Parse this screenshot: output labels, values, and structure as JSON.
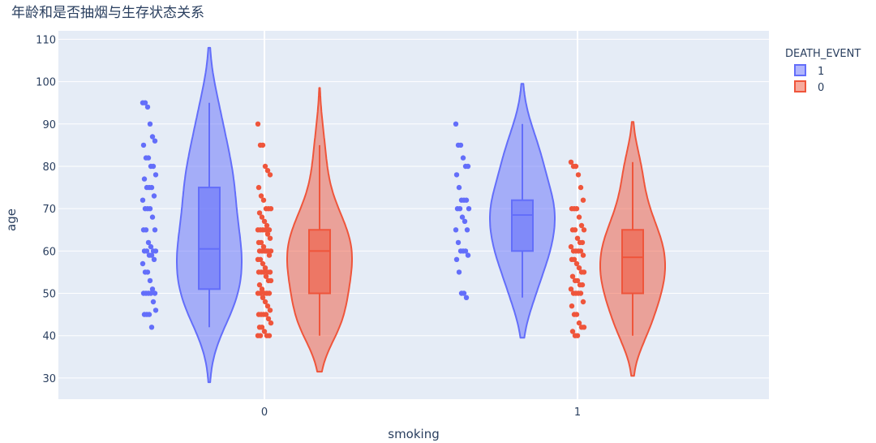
{
  "chart_data": {
    "type": "violin",
    "title": "年龄和是否抽烟与生存状态关系",
    "xlabel": "smoking",
    "ylabel": "age",
    "categories": [
      "0",
      "1"
    ],
    "ylim": [
      25,
      112
    ],
    "yticks": [
      30,
      40,
      50,
      60,
      70,
      80,
      90,
      100,
      110
    ],
    "grid": true,
    "legend": {
      "title": "DEATH_EVENT",
      "placement": "top-right",
      "items": [
        "1",
        "0"
      ]
    },
    "colors": {
      "1": "#636efa",
      "0": "#ef553b",
      "plot_bg": "#e5ecf6",
      "text": "#2a3f5f"
    },
    "series": [
      {
        "name": "1",
        "groups": [
          {
            "category": "0",
            "kde_min": 29,
            "kde_max": 108,
            "box": {
              "q1": 51,
              "median": 60.5,
              "q3": 75,
              "whisker_low": 42,
              "whisker_high": 95
            },
            "points": [
              95,
              95,
              94,
              90,
              87,
              86,
              85,
              82,
              82,
              80,
              80,
              78,
              77,
              75,
              75,
              75,
              73,
              72,
              70,
              70,
              70,
              68,
              65,
              65,
              65,
              62,
              61,
              60,
              60,
              60,
              60,
              59,
              59,
              58,
              57,
              55,
              55,
              53,
              51,
              50,
              50,
              50,
              50,
              50,
              48,
              46,
              45,
              45,
              45,
              42
            ]
          },
          {
            "category": "1",
            "kde_min": 39.5,
            "kde_max": 99.5,
            "box": {
              "q1": 60,
              "median": 68.5,
              "q3": 72,
              "whisker_low": 49,
              "whisker_high": 90
            },
            "points": [
              90,
              85,
              85,
              82,
              80,
              80,
              78,
              75,
              72,
              72,
              72,
              70,
              70,
              70,
              68,
              67,
              65,
              65,
              62,
              60,
              60,
              60,
              59,
              58,
              55,
              50,
              50,
              49
            ]
          }
        ]
      },
      {
        "name": "0",
        "groups": [
          {
            "category": "0",
            "kde_min": 31.5,
            "kde_max": 98.5,
            "box": {
              "q1": 50,
              "median": 60,
              "q3": 65,
              "whisker_low": 40,
              "whisker_high": 85
            },
            "points": [
              90,
              85,
              85,
              80,
              79,
              78,
              75,
              73,
              72,
              70,
              70,
              70,
              69,
              68,
              67,
              66,
              65,
              65,
              65,
              65,
              65,
              64,
              63,
              62,
              62,
              61,
              60,
              60,
              60,
              60,
              60,
              60,
              60,
              59,
              58,
              58,
              57,
              56,
              55,
              55,
              55,
              55,
              55,
              54,
              53,
              53,
              52,
              51,
              50,
              50,
              50,
              50,
              50,
              49,
              48,
              47,
              46,
              45,
              45,
              45,
              45,
              44,
              43,
              42,
              42,
              41,
              40,
              40,
              40,
              40
            ]
          },
          {
            "category": "1",
            "kde_min": 30.5,
            "kde_max": 90.5,
            "box": {
              "q1": 50,
              "median": 58.5,
              "q3": 65,
              "whisker_low": 40,
              "whisker_high": 81
            },
            "points": [
              81,
              80,
              80,
              78,
              75,
              72,
              70,
              70,
              70,
              68,
              66,
              65,
              65,
              65,
              63,
              62,
              62,
              61,
              60,
              60,
              60,
              60,
              59,
              58,
              58,
              57,
              56,
              55,
              55,
              54,
              53,
              53,
              52,
              52,
              51,
              50,
              50,
              50,
              50,
              48,
              47,
              45,
              45,
              43,
              42,
              42,
              41,
              40,
              40
            ]
          }
        ]
      }
    ]
  }
}
